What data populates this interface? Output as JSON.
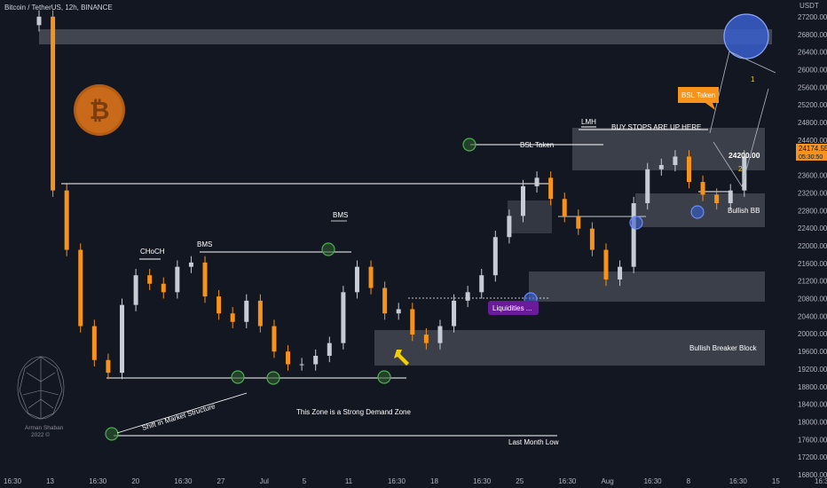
{
  "header": {
    "symbol": "Bitcoin / TetherUS, 12h, BINANCE",
    "currency": "USDT"
  },
  "price_axis": {
    "ticks": [
      "27200.00",
      "26800.00",
      "26400.00",
      "26000.00",
      "25600.00",
      "25200.00",
      "24800.00",
      "24400.00",
      "24000.00",
      "23600.00",
      "23200.00",
      "22800.00",
      "22400.00",
      "22000.00",
      "21600.00",
      "21200.00",
      "20800.00",
      "20400.00",
      "20000.00",
      "19600.00",
      "19200.00",
      "18800.00",
      "18400.00",
      "18000.00",
      "17600.00",
      "17200.00",
      "16800.00"
    ],
    "last_price": "24174.55",
    "countdown": "05:30:50",
    "last_price_color": "#f7931a"
  },
  "time_axis": {
    "ticks": [
      "16:30",
      "13",
      "16:30",
      "20",
      "16:30",
      "27",
      "Jul",
      "5",
      "11",
      "16:30",
      "18",
      "16:30",
      "25",
      "16:30",
      "Aug",
      "16:30",
      "8",
      "16:30",
      "15",
      "16:3"
    ]
  },
  "annotations": {
    "choch": "CHoCH",
    "bms_left": "BMS",
    "bms_top": "BMS",
    "shift": "Shift in Market Structure",
    "demand_zone": "This Zone is a Strong Demand Zone",
    "last_month_low": "Last Month Low",
    "bsl_taken_mid": "BSL Taken",
    "lmh": "LMH",
    "buy_stops": "BUY STOPS ARE UP HERE",
    "bsl_taken_callout": "BSL Taken",
    "target_price": "24200.00",
    "bullish_bb": "Bullish BB",
    "bullish_breaker": "Bullish Breaker Block",
    "liquidities": "Liquidities ...",
    "path_1": "1",
    "path_2": "2",
    "brand_name": "Arman Shaban",
    "brand_year": "2022 ©"
  },
  "colors": {
    "background": "#131722",
    "bull_candle": "#c7cbd4",
    "bear_candle": "#f7931a",
    "zone": "#4a4d57",
    "callout": "#f7931a",
    "liquidity_label": "#6a1b9a",
    "circle_green": "#3c8a3c",
    "circle_blue": "#3a5fcd"
  },
  "icons": {
    "bitcoin_logo": "bitcoin-logo",
    "brain_logo": "brain-logo"
  },
  "chart_data": {
    "type": "candlestick",
    "ylim": [
      16600,
      27400
    ],
    "x_index_range": [
      0,
      212
    ],
    "description_series": "close",
    "x": [
      0,
      4,
      8,
      12,
      16,
      20,
      24,
      28,
      32,
      36,
      40,
      44,
      48,
      52,
      56,
      60,
      64,
      68,
      72,
      76,
      80,
      84,
      88,
      92,
      96,
      100,
      104,
      108,
      112,
      116,
      120,
      124,
      128,
      132,
      136,
      140,
      144,
      148,
      152,
      156,
      160,
      164,
      168,
      172,
      176,
      180,
      184,
      188,
      192,
      196,
      200,
      204
    ],
    "close": [
      27300,
      23200,
      21800,
      20000,
      19200,
      18900,
      20500,
      21200,
      21000,
      20800,
      21400,
      21500,
      20700,
      20300,
      20100,
      20600,
      20000,
      19400,
      19100,
      19100,
      19300,
      19600,
      20800,
      21400,
      20900,
      20300,
      20400,
      19800,
      19600,
      20000,
      20600,
      20800,
      21200,
      22100,
      22600,
      23300,
      23500,
      23000,
      22600,
      22300,
      21800,
      21100,
      21400,
      22900,
      23700,
      23800,
      24000,
      23400,
      23100,
      22900,
      23200,
      24000
    ]
  }
}
